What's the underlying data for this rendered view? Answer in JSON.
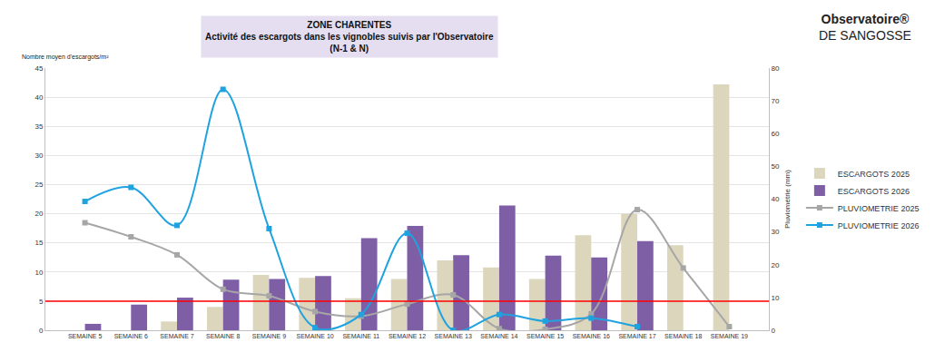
{
  "chart_data": {
    "type": "bar",
    "title": [
      "ZONE CHARENTES",
      "Activité des escargots dans les vignobles suivis par l'Observatoire",
      "(N-1 & N)"
    ],
    "logo_text": [
      "Observatoire®",
      "DE SANGOSSE"
    ],
    "y_label": "Nombre moyen d'escargots/m²",
    "y2_label": "Pluviométrie (mm)",
    "categories": [
      "SEMAINE 5",
      "SEMAINE 6",
      "SEMAINE 7",
      "SEMAINE 8",
      "SEMAINE 9",
      "SEMAINE 10",
      "SEMAINE 11",
      "SEMAINE 12",
      "SEMAINE 13",
      "SEMAINE 14",
      "SEMAINE 15",
      "SEMAINE 16",
      "SEMAINE 17",
      "SEMAINE 18",
      "SEMAINE 19"
    ],
    "series": [
      {
        "name": "ESCARGOTS 2025",
        "type": "bar",
        "color": "#dcd6bd",
        "values": [
          null,
          null,
          1.5,
          4,
          9.5,
          9,
          5.5,
          8.8,
          12,
          10.8,
          8.8,
          16.3,
          20,
          14.6,
          42.2
        ]
      },
      {
        "name": "ESCARGOTS 2026",
        "type": "bar",
        "color": "#7e5fa6",
        "values": [
          1.1,
          4.4,
          5.6,
          8.7,
          8.8,
          9.3,
          15.8,
          17.9,
          12.9,
          21.4,
          12.8,
          12.5,
          15.3,
          null,
          null
        ]
      },
      {
        "name": "PLUVIOMETRIE 2025",
        "type": "line",
        "axis": "y2",
        "color": "#a6a6a6",
        "marker": "square",
        "line_style": "smooth",
        "values": [
          32.8,
          28.5,
          23,
          12.5,
          10.5,
          5.7,
          4.3,
          8,
          10.8,
          0.5,
          0.3,
          5,
          36.8,
          19,
          1.1
        ]
      },
      {
        "name": "PLUVIOMETRIE 2026",
        "type": "line",
        "axis": "y2",
        "color": "#1fa3e0",
        "marker": "square",
        "line_style": "smooth",
        "values": [
          39.3,
          43.6,
          32,
          73.5,
          31,
          0.8,
          4.8,
          29.6,
          0,
          4.8,
          2.8,
          3.7,
          1.1,
          null,
          null
        ]
      }
    ],
    "reference_line": {
      "value": 5,
      "color": "#ff0000"
    },
    "ylim": [
      0,
      45
    ],
    "yticks": [
      0,
      5,
      10,
      15,
      20,
      25,
      30,
      35,
      40,
      45
    ],
    "y2lim": [
      0,
      80
    ],
    "y2ticks": [
      0,
      10,
      20,
      30,
      40,
      50,
      60,
      70,
      80
    ],
    "grid": true,
    "legend": "right"
  }
}
